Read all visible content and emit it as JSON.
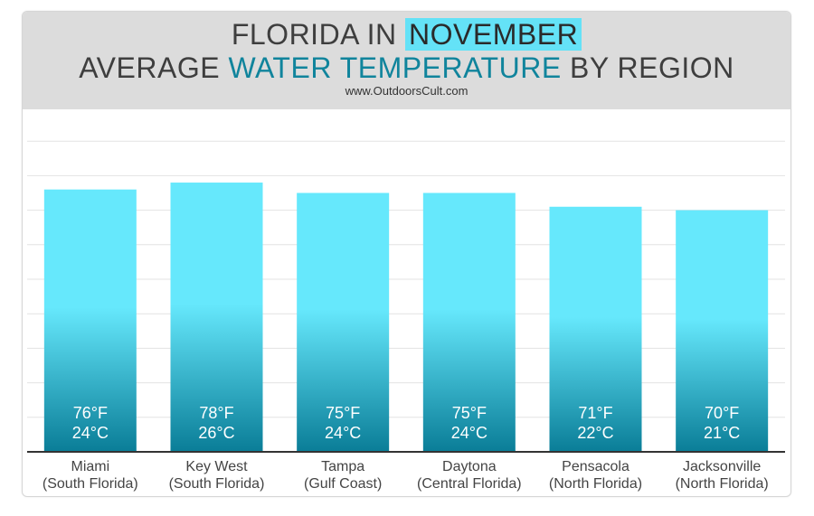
{
  "header": {
    "title_line1_prefix": "FLORIDA IN ",
    "title_line1_highlight": "NOVEMBER",
    "title_line2_prefix": "AVERAGE ",
    "title_line2_accent": "WATER TEMPERATURE",
    "title_line2_suffix": " BY REGION",
    "website": "www.OutdoorsCult.com"
  },
  "colors": {
    "bar_top": "#66e8fc",
    "bar_bottom": "#0a7d97",
    "highlight": "#64e2f7",
    "accent": "#10849c"
  },
  "chart_data": {
    "type": "bar",
    "title": "FLORIDA IN NOVEMBER AVERAGE WATER TEMPERATURE BY REGION",
    "xlabel": "",
    "ylabel": "",
    "ylim": [
      0,
      100
    ],
    "grid": true,
    "categories": [
      [
        "Miami",
        "(South Florida)"
      ],
      [
        "Key West",
        "(South Florida)"
      ],
      [
        "Tampa",
        "(Gulf Coast)"
      ],
      [
        "Daytona",
        "(Central Florida)"
      ],
      [
        "Pensacola",
        "(North Florida)"
      ],
      [
        "Jacksonville",
        "(North Florida)"
      ]
    ],
    "values_f": [
      76,
      78,
      75,
      75,
      71,
      70
    ],
    "values_c": [
      24,
      26,
      24,
      24,
      22,
      21
    ],
    "labels_f": [
      "76°F",
      "78°F",
      "75°F",
      "75°F",
      "71°F",
      "70°F"
    ],
    "labels_c": [
      "24°C",
      "26°C",
      "24°C",
      "24°C",
      "22°C",
      "21°C"
    ]
  }
}
